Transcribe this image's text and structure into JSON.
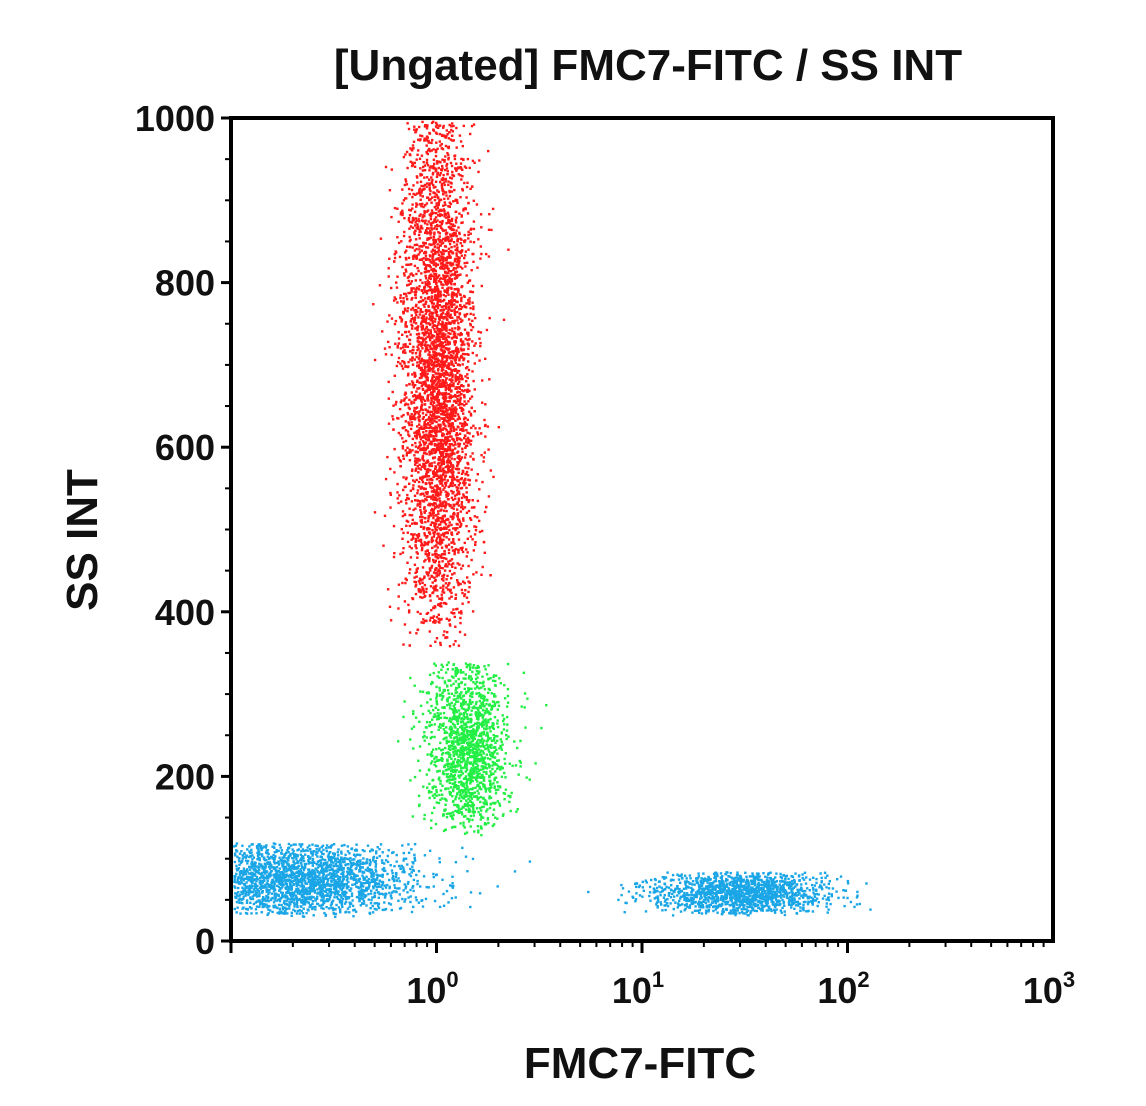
{
  "chart_data": {
    "type": "scatter",
    "title": "[Ungated] FMC7-FITC / SS INT",
    "xlabel": "FMC7-FITC",
    "ylabel": "SS INT",
    "x_scale": "log",
    "xlim": [
      0.1,
      1000
    ],
    "ylim": [
      0,
      1000
    ],
    "x_ticks": [
      {
        "base": "10",
        "exp": "0",
        "value": 1
      },
      {
        "base": "10",
        "exp": "1",
        "value": 10
      },
      {
        "base": "10",
        "exp": "2",
        "value": 100
      },
      {
        "base": "10",
        "exp": "3",
        "value": 1000
      }
    ],
    "y_ticks": [
      "0",
      "200",
      "400",
      "600",
      "800",
      "1000"
    ],
    "grid": false,
    "legend": "none",
    "series": [
      {
        "color": "#ff1a1a",
        "clusters": [
          {
            "x_center": 1.0,
            "x_log_spread": 0.09,
            "y_range": [
              390,
              1000
            ],
            "points": 4200
          }
        ]
      },
      {
        "color": "#22ee44",
        "clusters": [
          {
            "x_center": 1.4,
            "x_log_spread": 0.1,
            "y_range": [
              140,
              340
            ],
            "points": 1500
          }
        ]
      },
      {
        "color": "#1aa6e6",
        "clusters": [
          {
            "x_center": 0.2,
            "x_log_spread": 0.3,
            "y_range": [
              35,
              120
            ],
            "points": 2500
          },
          {
            "x_center": 30,
            "x_log_spread": 0.22,
            "y_range": [
              35,
              85
            ],
            "points": 1400
          }
        ]
      }
    ],
    "colors": {
      "red_population": "#ff1a1a",
      "green_population": "#22ee44",
      "blue_population": "#1aa6e6",
      "axis": "#000000"
    }
  }
}
